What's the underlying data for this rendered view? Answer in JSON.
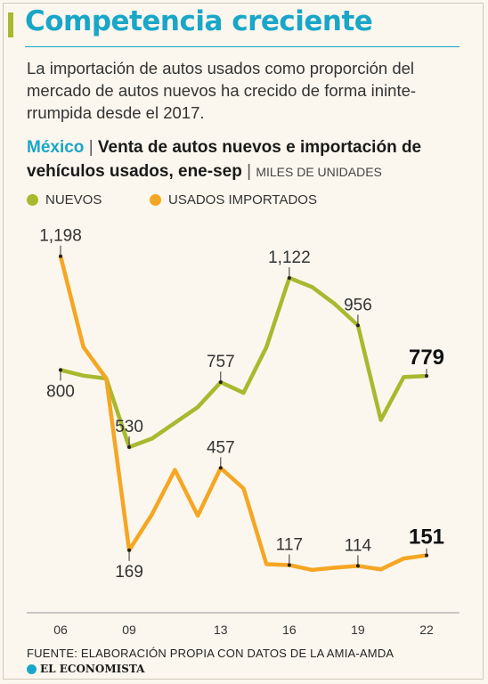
{
  "header": {
    "title": "Competencia creciente",
    "intro": "La importación de autos usados como proporción del mercado de autos nuevos ha crecido de forma ininte­rrumpida desde el 2017."
  },
  "subtitle": {
    "country": "México",
    "separator": "|",
    "text": "Venta de autos nuevos e importación de vehículos usados, ene-sep",
    "units": "MILES DE UNIDADES"
  },
  "legend": {
    "nuevos": "NUEVOS",
    "usados": "USADOS IMPORTADOS"
  },
  "colors": {
    "nuevos": "#a8b92f",
    "usados": "#f5a623",
    "accent": "#1aa6c8"
  },
  "chart_data": {
    "type": "line",
    "x": [
      2006,
      2007,
      2008,
      2009,
      2010,
      2011,
      2012,
      2013,
      2014,
      2015,
      2016,
      2017,
      2018,
      2019,
      2020,
      2021,
      2022
    ],
    "xticks": [
      2006,
      2009,
      2013,
      2016,
      2019,
      2022
    ],
    "xtick_labels": [
      "06",
      "09",
      "13",
      "16",
      "19",
      "22"
    ],
    "ylim": [
      0,
      1300
    ],
    "grid": false,
    "series": [
      {
        "name": "NUEVOS",
        "color": "#a8b92f",
        "values": [
          800,
          780,
          770,
          530,
          560,
          615,
          670,
          757,
          720,
          880,
          1122,
          1090,
          1030,
          956,
          625,
          775,
          779
        ]
      },
      {
        "name": "USADOS IMPORTADOS",
        "color": "#f5a623",
        "values": [
          1198,
          880,
          770,
          169,
          295,
          450,
          290,
          457,
          385,
          120,
          117,
          100,
          108,
          114,
          102,
          140,
          151
        ]
      }
    ],
    "annotations": [
      {
        "series": 0,
        "x": 2006,
        "label": "800",
        "pos": "below"
      },
      {
        "series": 0,
        "x": 2009,
        "label": "530",
        "pos": "above"
      },
      {
        "series": 0,
        "x": 2013,
        "label": "757",
        "pos": "above"
      },
      {
        "series": 0,
        "x": 2016,
        "label": "1,122",
        "pos": "above"
      },
      {
        "series": 0,
        "x": 2019,
        "label": "956",
        "pos": "above"
      },
      {
        "series": 0,
        "x": 2022,
        "label": "779",
        "pos": "above",
        "bold": true
      },
      {
        "series": 1,
        "x": 2006,
        "label": "1,198",
        "pos": "above"
      },
      {
        "series": 1,
        "x": 2009,
        "label": "169",
        "pos": "below"
      },
      {
        "series": 1,
        "x": 2013,
        "label": "457",
        "pos": "above"
      },
      {
        "series": 1,
        "x": 2016,
        "label": "117",
        "pos": "above"
      },
      {
        "series": 1,
        "x": 2019,
        "label": "114",
        "pos": "above"
      },
      {
        "series": 1,
        "x": 2022,
        "label": "151",
        "pos": "above",
        "bold": true
      }
    ]
  },
  "footer": {
    "source": "FUENTE: ELABORACIÓN PROPIA CON DATOS DE LA AMIA-AMDA",
    "brand": "EL ECONOMISTA"
  }
}
